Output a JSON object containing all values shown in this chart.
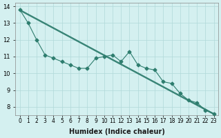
{
  "xlabel": "Humidex (Indice chaleur)",
  "x_values": [
    0,
    1,
    2,
    3,
    4,
    5,
    6,
    7,
    8,
    9,
    10,
    11,
    12,
    13,
    14,
    15,
    16,
    17,
    18,
    19,
    20,
    21,
    22,
    23
  ],
  "line1_y": [
    13.8,
    13.0,
    12.0,
    11.1,
    10.9,
    10.7,
    10.5,
    10.3,
    10.3,
    10.9,
    11.0,
    11.1,
    10.7,
    11.3,
    10.5,
    10.3,
    10.2,
    9.5,
    9.4,
    8.8,
    8.4,
    8.25,
    7.8,
    7.6
  ],
  "line3_y": [
    13.8,
    null,
    null,
    null,
    null,
    null,
    null,
    null,
    null,
    null,
    null,
    null,
    null,
    null,
    null,
    null,
    null,
    null,
    null,
    null,
    null,
    null,
    null,
    7.6
  ],
  "color": "#2e7d6e",
  "bg_color": "#d4f0f0",
  "grid_color": "#b0d8d8",
  "ylim": [
    7.5,
    14.2
  ],
  "yticks": [
    8,
    9,
    10,
    11,
    12,
    13,
    14
  ],
  "xlim": [
    -0.5,
    23.5
  ]
}
